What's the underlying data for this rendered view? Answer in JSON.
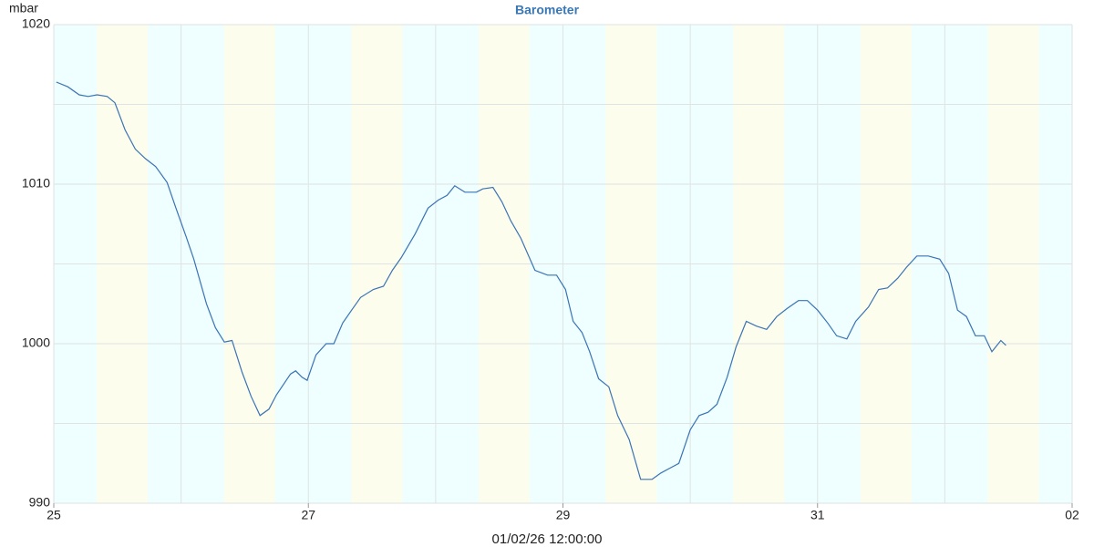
{
  "chart_data": {
    "type": "line",
    "title": "Barometer",
    "y_unit": "mbar",
    "cursor_time": "01/02/26 12:00:00",
    "x": [
      0.02,
      0.11,
      0.2,
      0.27,
      0.34,
      0.42,
      0.48,
      0.56,
      0.64,
      0.72,
      0.8,
      0.89,
      0.96,
      1.04,
      1.1,
      1.2,
      1.27,
      1.34,
      1.4,
      1.48,
      1.55,
      1.62,
      1.69,
      1.75,
      1.86,
      1.9,
      1.95,
      1.99,
      2.06,
      2.14,
      2.2,
      2.27,
      2.34,
      2.41,
      2.51,
      2.59,
      2.66,
      2.73,
      2.84,
      2.94,
      3.02,
      3.09,
      3.15,
      3.23,
      3.32,
      3.37,
      3.45,
      3.52,
      3.59,
      3.67,
      3.78,
      3.88,
      3.95,
      4.02,
      4.08,
      4.15,
      4.21,
      4.28,
      4.36,
      4.43,
      4.52,
      4.61,
      4.7,
      4.77,
      4.84,
      4.91,
      5.0,
      5.07,
      5.14,
      5.21,
      5.29,
      5.36,
      5.44,
      5.52,
      5.6,
      5.68,
      5.76,
      5.85,
      5.92,
      6.0,
      6.08,
      6.15,
      6.23,
      6.3,
      6.4,
      6.48,
      6.55,
      6.63,
      6.7,
      6.78,
      6.87,
      6.96,
      7.03,
      7.1,
      7.17,
      7.24,
      7.31,
      7.37,
      7.44,
      7.48
    ],
    "series": [
      {
        "name": "Barometer",
        "color": "#3a73b5",
        "values": [
          1016.4,
          1016.1,
          1015.6,
          1015.5,
          1015.6,
          1015.5,
          1015.1,
          1013.4,
          1012.2,
          1011.6,
          1011.1,
          1010.1,
          1008.5,
          1006.7,
          1005.3,
          1002.5,
          1001.0,
          1000.1,
          1000.2,
          998.2,
          996.7,
          995.5,
          995.9,
          996.8,
          998.1,
          998.3,
          997.9,
          997.7,
          999.3,
          1000.0,
          1000.0,
          1001.3,
          1002.1,
          1002.9,
          1003.4,
          1003.6,
          1004.6,
          1005.4,
          1006.9,
          1008.5,
          1009.0,
          1009.3,
          1009.9,
          1009.5,
          1009.5,
          1009.7,
          1009.8,
          1008.9,
          1007.7,
          1006.6,
          1004.6,
          1004.3,
          1004.3,
          1003.4,
          1001.4,
          1000.7,
          999.5,
          997.8,
          997.3,
          995.5,
          994.0,
          991.5,
          991.5,
          991.9,
          992.2,
          992.5,
          994.6,
          995.5,
          995.7,
          996.2,
          997.9,
          999.8,
          1001.4,
          1001.1,
          1000.9,
          1001.7,
          1002.2,
          1002.7,
          1002.7,
          1002.1,
          1001.3,
          1000.5,
          1000.3,
          1001.4,
          1002.3,
          1003.4,
          1003.5,
          1004.1,
          1004.8,
          1005.5,
          1005.5,
          1005.3,
          1004.4,
          1002.1,
          1001.7,
          1000.5,
          1000.5,
          999.5,
          1000.2,
          999.9
        ]
      }
    ],
    "xlim": [
      0,
      8
    ],
    "xticks": [
      {
        "value": 0,
        "label": "25"
      },
      {
        "value": 2,
        "label": "27"
      },
      {
        "value": 4,
        "label": "29"
      },
      {
        "value": 6,
        "label": "31"
      },
      {
        "value": 8,
        "label": "02"
      }
    ],
    "xgrid": [
      0,
      1,
      2,
      3,
      4,
      5,
      6,
      7,
      8
    ],
    "ylim": [
      990,
      1020
    ],
    "yticks": [
      990,
      1000,
      1010,
      1020
    ],
    "ygrid": [
      990,
      995,
      1000,
      1005,
      1010,
      1015,
      1020
    ],
    "day_bands": [
      [
        0.337,
        0.738
      ],
      [
        1.337,
        1.738
      ],
      [
        2.337,
        2.738
      ],
      [
        3.337,
        3.738
      ],
      [
        4.337,
        4.738
      ],
      [
        5.337,
        5.738
      ],
      [
        6.337,
        6.738
      ],
      [
        7.337,
        7.738
      ]
    ],
    "night_color": "#effefe",
    "day_color": "#fdfded",
    "grid": true
  }
}
